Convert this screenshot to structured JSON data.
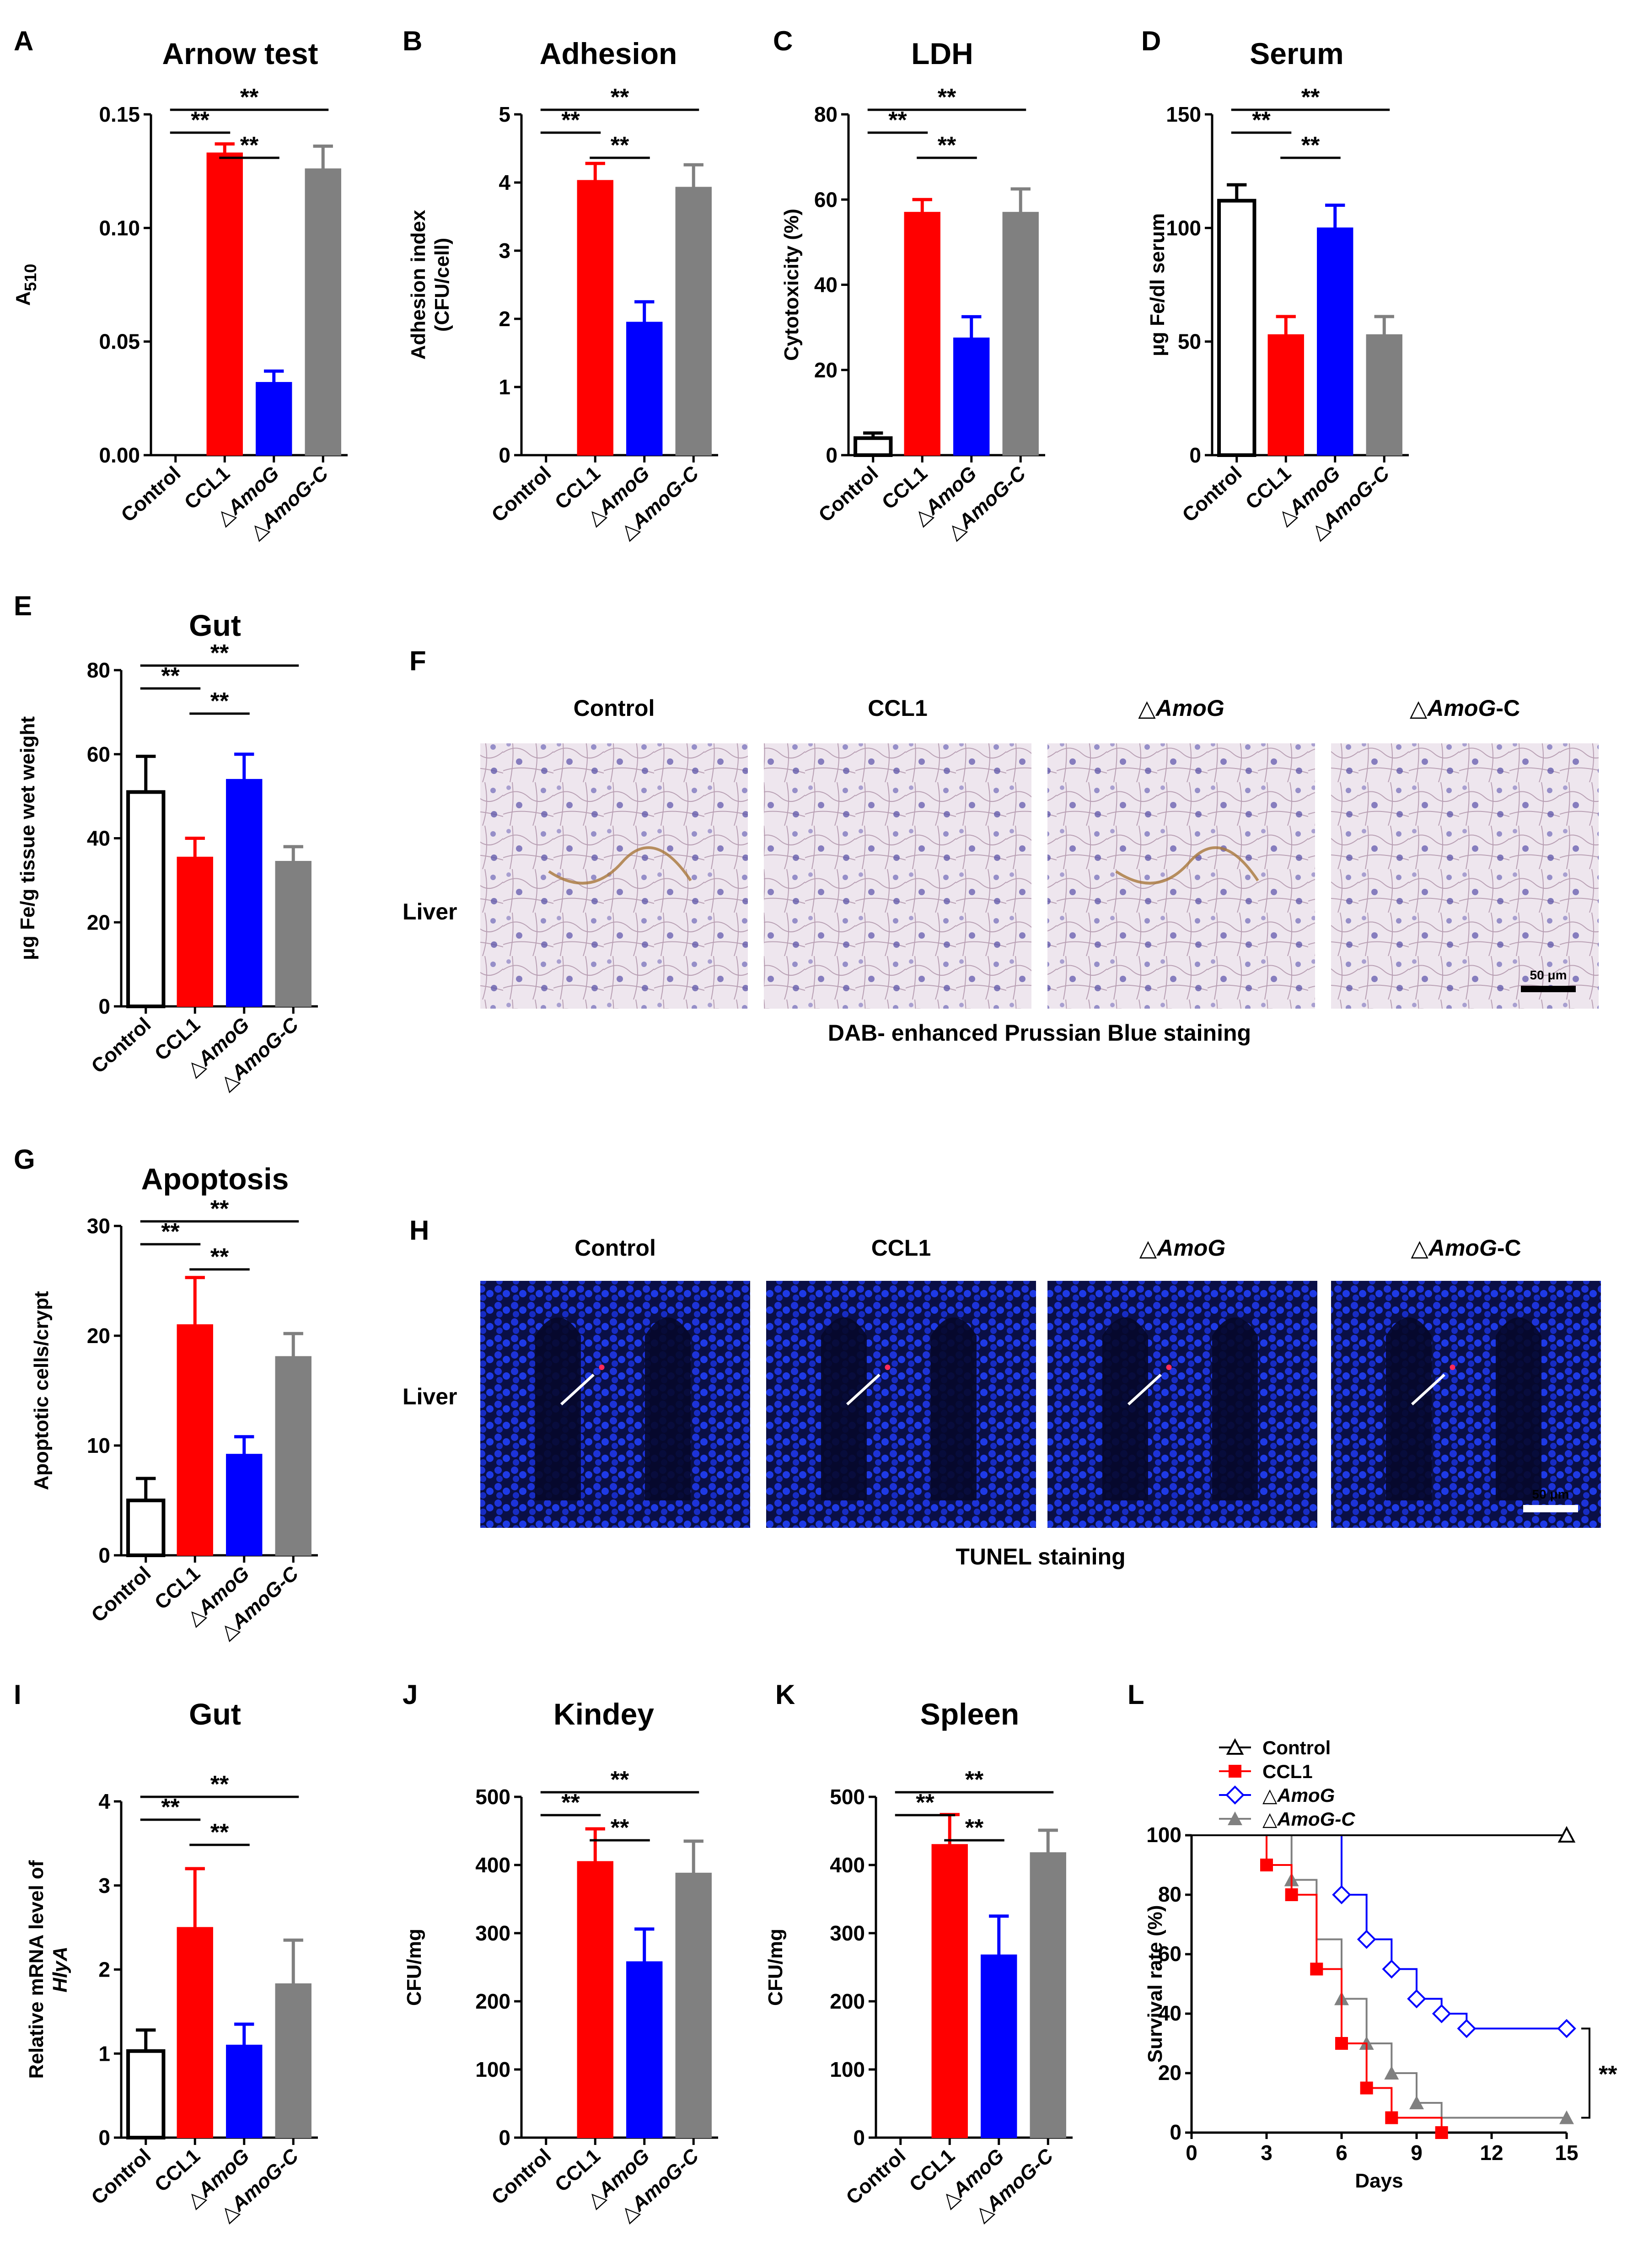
{
  "figure": {
    "image_panels": [
      {
        "letter": "F",
        "kind": "ihc",
        "columns": [
          "Control",
          "CCL1",
          "△AmoG",
          "△AmoG-C"
        ],
        "row_label": "Liver",
        "scale_bar": "50 μm",
        "caption": "DAB- enhanced Prussian Blue staining"
      },
      {
        "letter": "H",
        "kind": "tunel",
        "columns": [
          "Control",
          "CCL1",
          "△AmoG",
          "△AmoG-C"
        ],
        "row_label": "Liver",
        "scale_bar": "50 μm",
        "caption": "TUNEL staining"
      }
    ]
  },
  "colors": {
    "control": "#ffffff",
    "ccl1": "#ff0000",
    "amog": "#0000ff",
    "amogc": "#808080",
    "outline": "#000000"
  },
  "chart_data": [
    {
      "letter": "A",
      "type": "bar",
      "title": "Arnow test",
      "ylabel": "A510",
      "ylim": [
        0,
        0.15
      ],
      "yticks": [
        "0.00",
        "0.05",
        "0.10",
        "0.15"
      ],
      "categories": [
        "Control",
        "CCL1",
        "△AmoG",
        "△AmoG-C"
      ],
      "values": [
        0,
        0.133,
        0.032,
        0.126
      ],
      "errors": [
        0,
        0.004,
        0.005,
        0.01
      ],
      "control_open": false,
      "significance": [
        {
          "a": 0,
          "b": 1,
          "label": "**"
        },
        {
          "a": 1,
          "b": 2,
          "label": "**"
        },
        {
          "a": 0,
          "b": 3,
          "label": "**"
        }
      ]
    },
    {
      "letter": "B",
      "type": "bar",
      "title": "Adhesion",
      "ylabel": "Adhesion index\n(CFU/cell)",
      "ylim": [
        0,
        5
      ],
      "yticks": [
        "0",
        "1",
        "2",
        "3",
        "4",
        "5"
      ],
      "categories": [
        "Control",
        "CCL1",
        "△AmoG",
        "△AmoG-C"
      ],
      "values": [
        0,
        4.03,
        1.95,
        3.93
      ],
      "errors": [
        0,
        0.25,
        0.3,
        0.33
      ],
      "control_open": false,
      "significance": [
        {
          "a": 0,
          "b": 1,
          "label": "**"
        },
        {
          "a": 1,
          "b": 2,
          "label": "**"
        },
        {
          "a": 0,
          "b": 3,
          "label": "**"
        }
      ]
    },
    {
      "letter": "C",
      "type": "bar",
      "title": "LDH",
      "ylabel": "Cytotoxicity (%)",
      "ylim": [
        0,
        80
      ],
      "yticks": [
        "0",
        "20",
        "40",
        "60",
        "80"
      ],
      "categories": [
        "Control",
        "CCL1",
        "△AmoG",
        "△AmoG-C"
      ],
      "values": [
        4,
        57,
        27.5,
        57
      ],
      "errors": [
        1.2,
        3,
        5,
        5.5
      ],
      "control_open": true,
      "significance": [
        {
          "a": 0,
          "b": 1,
          "label": "**"
        },
        {
          "a": 1,
          "b": 2,
          "label": "**"
        },
        {
          "a": 0,
          "b": 3,
          "label": "**"
        }
      ]
    },
    {
      "letter": "D",
      "type": "bar",
      "title": "Serum",
      "ylabel": "μg Fe/dl serum",
      "ylim": [
        0,
        150
      ],
      "yticks": [
        "0",
        "50",
        "100",
        "150"
      ],
      "categories": [
        "Control",
        "CCL1",
        "△AmoG",
        "△AmoG-C"
      ],
      "values": [
        112,
        53,
        100,
        53
      ],
      "errors": [
        7,
        8,
        10,
        8
      ],
      "control_open": true,
      "significance": [
        {
          "a": 0,
          "b": 1,
          "label": "**"
        },
        {
          "a": 1,
          "b": 2,
          "label": "**"
        },
        {
          "a": 0,
          "b": 3,
          "label": "**"
        }
      ]
    },
    {
      "letter": "E",
      "type": "bar",
      "title": "Gut",
      "ylabel": "μg Fe/g tissue wet weight",
      "ylim": [
        0,
        80
      ],
      "yticks": [
        "0",
        "20",
        "40",
        "60",
        "80"
      ],
      "categories": [
        "Control",
        "CCL1",
        "△AmoG",
        "△AmoG-C"
      ],
      "values": [
        51,
        35.5,
        54,
        34.5
      ],
      "errors": [
        8.5,
        4.5,
        6,
        3.5
      ],
      "control_open": true,
      "significance": [
        {
          "a": 0,
          "b": 1,
          "label": "**"
        },
        {
          "a": 1,
          "b": 2,
          "label": "**"
        },
        {
          "a": 0,
          "b": 3,
          "label": "**"
        }
      ]
    },
    {
      "letter": "G",
      "type": "bar",
      "title": "Apoptosis",
      "ylabel": "Apoptotic cells/crypt",
      "ylim": [
        0,
        30
      ],
      "yticks": [
        "0",
        "10",
        "20",
        "30"
      ],
      "categories": [
        "Control",
        "CCL1",
        "△AmoG",
        "△AmoG-C"
      ],
      "values": [
        5,
        21,
        9.2,
        18.1
      ],
      "errors": [
        2,
        4.3,
        1.6,
        2.1
      ],
      "control_open": true,
      "significance": [
        {
          "a": 0,
          "b": 1,
          "label": "**"
        },
        {
          "a": 1,
          "b": 2,
          "label": "**"
        },
        {
          "a": 0,
          "b": 3,
          "label": "**"
        }
      ]
    },
    {
      "letter": "I",
      "type": "bar",
      "title": "Gut",
      "ylabel": "Relative mRNA level of\nHlyA",
      "ylim": [
        0,
        4
      ],
      "yticks": [
        "0",
        "1",
        "2",
        "3",
        "4"
      ],
      "categories": [
        "Control",
        "CCL1",
        "△AmoG",
        "△AmoG-C"
      ],
      "values": [
        1.03,
        2.5,
        1.1,
        1.83
      ],
      "errors": [
        0.25,
        0.7,
        0.25,
        0.52
      ],
      "control_open": true,
      "significance": [
        {
          "a": 0,
          "b": 1,
          "label": "**"
        },
        {
          "a": 1,
          "b": 2,
          "label": "**"
        },
        {
          "a": 0,
          "b": 3,
          "label": "**"
        }
      ]
    },
    {
      "letter": "J",
      "type": "bar",
      "title": "Kindey",
      "ylabel": "CFU/mg",
      "ylim": [
        0,
        500
      ],
      "yticks": [
        "0",
        "100",
        "200",
        "300",
        "400",
        "500"
      ],
      "categories": [
        "Control",
        "CCL1",
        "△AmoG",
        "△AmoG-C"
      ],
      "values": [
        0,
        405,
        258,
        388
      ],
      "errors": [
        0,
        48,
        48,
        47
      ],
      "control_open": false,
      "significance": [
        {
          "a": 0,
          "b": 1,
          "label": "**"
        },
        {
          "a": 1,
          "b": 2,
          "label": "**"
        },
        {
          "a": 0,
          "b": 3,
          "label": "**"
        }
      ]
    },
    {
      "letter": "K",
      "type": "bar",
      "title": "Spleen",
      "ylabel": "CFU/mg",
      "ylim": [
        0,
        500
      ],
      "yticks": [
        "0",
        "100",
        "200",
        "300",
        "400",
        "500"
      ],
      "categories": [
        "Control",
        "CCL1",
        "△AmoG",
        "△AmoG-C"
      ],
      "values": [
        0,
        430,
        268,
        418
      ],
      "errors": [
        0,
        44,
        57,
        33
      ],
      "control_open": false,
      "significance": [
        {
          "a": 0,
          "b": 1,
          "label": "**"
        },
        {
          "a": 1,
          "b": 2,
          "label": "**"
        },
        {
          "a": 0,
          "b": 3,
          "label": "**"
        }
      ]
    },
    {
      "letter": "L",
      "type": "line",
      "ylabel": "Survival rate (%)",
      "xlabel": "Days",
      "xlim": [
        0,
        15
      ],
      "ylim": [
        0,
        100
      ],
      "xticks": [
        0,
        3,
        6,
        9,
        12,
        15
      ],
      "yticks": [
        0,
        20,
        40,
        60,
        80,
        100
      ],
      "significance_label": "**",
      "series": [
        {
          "name": "Control",
          "marker": "triangle-open",
          "color": "#000000",
          "x": [
            0,
            15
          ],
          "y": [
            100,
            100
          ],
          "markers_x": [
            15
          ],
          "markers_y": [
            100
          ]
        },
        {
          "name": "CCL1",
          "marker": "square",
          "color": "#ff0000",
          "x": [
            0,
            3,
            4,
            5,
            6,
            7,
            8,
            10
          ],
          "y": [
            100,
            90,
            80,
            55,
            30,
            15,
            5,
            0
          ],
          "markers_x": [
            3,
            4,
            5,
            6,
            7,
            8,
            10
          ],
          "markers_y": [
            90,
            80,
            55,
            30,
            15,
            5,
            0
          ]
        },
        {
          "name": "△AmoG",
          "marker": "diamond-open",
          "color": "#0000ff",
          "x": [
            0,
            6,
            7,
            8,
            9,
            10,
            11,
            15
          ],
          "y": [
            100,
            80,
            65,
            55,
            45,
            40,
            35,
            35
          ],
          "markers_x": [
            6,
            7,
            8,
            9,
            10,
            11,
            15
          ],
          "markers_y": [
            80,
            65,
            55,
            45,
            40,
            35,
            35
          ]
        },
        {
          "name": "△AmoG-C",
          "marker": "triangle",
          "color": "#808080",
          "x": [
            0,
            4,
            5,
            6,
            7,
            8,
            9,
            10,
            15
          ],
          "y": [
            100,
            85,
            65,
            45,
            30,
            20,
            10,
            5,
            5
          ],
          "markers_x": [
            4,
            6,
            7,
            8,
            9,
            15
          ],
          "markers_y": [
            85,
            45,
            30,
            20,
            10,
            5
          ]
        }
      ]
    }
  ]
}
